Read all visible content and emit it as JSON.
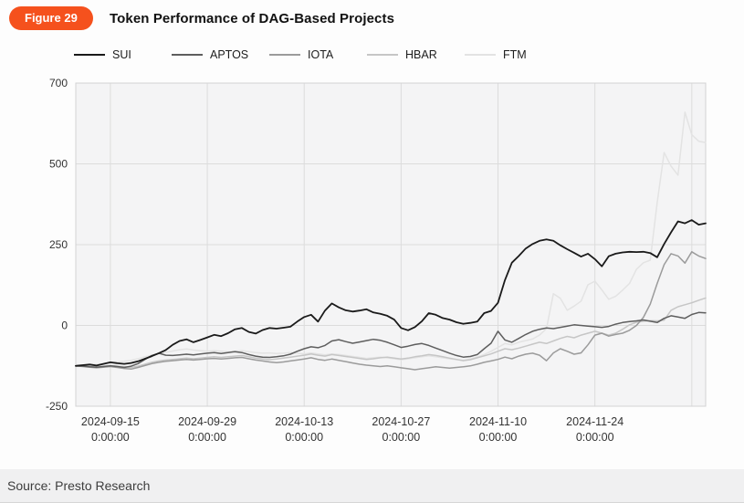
{
  "figure_badge": "Figure 29",
  "title": "Token Performance of DAG-Based Projects",
  "source": "Source: Presto Research",
  "colors": {
    "badge": "#f5511d",
    "plot_bg": "#f4f4f5",
    "grid": "#dcdcdc",
    "frame": "#d2d2d4",
    "axis_text": "#333333"
  },
  "legend": {
    "items": [
      {
        "label": "SUI",
        "color": "#1a1a1a"
      },
      {
        "label": "APTOS",
        "color": "#5e5e5e"
      },
      {
        "label": "IOTA",
        "color": "#9b9b9b"
      },
      {
        "label": "HBAR",
        "color": "#c6c6c6"
      },
      {
        "label": "FTM",
        "color": "#e3e3e3"
      }
    ]
  },
  "chart_data": {
    "type": "line",
    "title": "Token Performance of DAG-Based Projects",
    "x_unit": "day",
    "x_start": "2024-09-10",
    "x_end": "2024-12-10",
    "x_axis": {
      "ticks": [
        {
          "day": 5,
          "lines": [
            "2024-09-15",
            "0:00:00"
          ]
        },
        {
          "day": 19,
          "lines": [
            "2024-09-29",
            "0:00:00"
          ]
        },
        {
          "day": 33,
          "lines": [
            "2024-10-13",
            "0:00:00"
          ]
        },
        {
          "day": 47,
          "lines": [
            "2024-10-27",
            "0:00:00"
          ]
        },
        {
          "day": 61,
          "lines": [
            "2024-11-10",
            "0:00:00"
          ]
        },
        {
          "day": 75,
          "lines": [
            "2024-11-24",
            "0:00:00"
          ]
        },
        {
          "day": 89,
          "lines": [
            "",
            ""
          ]
        }
      ]
    },
    "y_axis": {
      "ticks": [
        -250,
        0,
        250,
        500,
        700
      ],
      "edge_tick": 700,
      "grid": true
    },
    "legend_position": "top",
    "series": [
      {
        "name": "SUI",
        "color": "#1a1a1a",
        "width": 1.8,
        "values": [
          -125,
          -123,
          -121,
          -124,
          -119,
          -114,
          -117,
          -119,
          -116,
          -111,
          -103,
          -95,
          -86,
          -76,
          -60,
          -48,
          -43,
          -52,
          -45,
          -37,
          -29,
          -33,
          -24,
          -12,
          -8,
          -20,
          -25,
          -14,
          -8,
          -10,
          -7,
          -4,
          12,
          26,
          33,
          12,
          46,
          68,
          56,
          47,
          43,
          46,
          50,
          40,
          36,
          30,
          18,
          -8,
          -15,
          -5,
          13,
          38,
          33,
          23,
          18,
          10,
          5,
          8,
          12,
          38,
          45,
          70,
          140,
          194,
          215,
          238,
          252,
          262,
          266,
          262,
          248,
          236,
          225,
          213,
          222,
          205,
          183,
          214,
          222,
          226,
          228,
          227,
          228,
          224,
          211,
          252,
          288,
          322,
          316,
          326,
          312,
          316
        ]
      },
      {
        "name": "APTOS",
        "color": "#5e5e5e",
        "width": 1.5,
        "values": [
          -125,
          -126,
          -128,
          -129,
          -127,
          -125,
          -127,
          -130,
          -126,
          -118,
          -105,
          -93,
          -86,
          -92,
          -93,
          -91,
          -89,
          -91,
          -88,
          -86,
          -84,
          -87,
          -84,
          -81,
          -84,
          -90,
          -95,
          -98,
          -99,
          -97,
          -94,
          -89,
          -80,
          -72,
          -66,
          -69,
          -62,
          -48,
          -44,
          -50,
          -55,
          -51,
          -47,
          -43,
          -46,
          -52,
          -60,
          -68,
          -64,
          -59,
          -56,
          -62,
          -70,
          -78,
          -86,
          -93,
          -98,
          -96,
          -90,
          -72,
          -55,
          -18,
          -45,
          -52,
          -40,
          -28,
          -18,
          -12,
          -8,
          -10,
          -6,
          -2,
          2,
          0,
          -2,
          -4,
          -6,
          -3,
          4,
          9,
          12,
          14,
          17,
          13,
          9,
          22,
          30,
          26,
          22,
          34,
          40,
          39
        ]
      },
      {
        "name": "IOTA",
        "color": "#9b9b9b",
        "width": 1.5,
        "values": [
          -125,
          -127,
          -129,
          -131,
          -129,
          -127,
          -130,
          -133,
          -135,
          -130,
          -124,
          -118,
          -114,
          -111,
          -109,
          -107,
          -105,
          -107,
          -105,
          -103,
          -102,
          -104,
          -102,
          -100,
          -99,
          -103,
          -107,
          -110,
          -113,
          -115,
          -113,
          -110,
          -107,
          -104,
          -100,
          -105,
          -108,
          -104,
          -108,
          -112,
          -116,
          -120,
          -123,
          -125,
          -127,
          -125,
          -128,
          -131,
          -134,
          -137,
          -134,
          -131,
          -128,
          -130,
          -132,
          -130,
          -128,
          -125,
          -120,
          -114,
          -110,
          -105,
          -98,
          -103,
          -95,
          -89,
          -86,
          -92,
          -109,
          -85,
          -72,
          -80,
          -89,
          -85,
          -60,
          -30,
          -24,
          -33,
          -28,
          -24,
          -15,
          0,
          25,
          66,
          130,
          188,
          222,
          215,
          193,
          228,
          215,
          207
        ]
      },
      {
        "name": "HBAR",
        "color": "#c6c6c6",
        "width": 1.5,
        "values": [
          -125,
          -126,
          -127,
          -128,
          -126,
          -124,
          -126,
          -128,
          -130,
          -126,
          -120,
          -114,
          -110,
          -107,
          -105,
          -103,
          -101,
          -103,
          -101,
          -99,
          -97,
          -99,
          -97,
          -95,
          -93,
          -97,
          -101,
          -104,
          -106,
          -104,
          -101,
          -98,
          -95,
          -92,
          -88,
          -92,
          -95,
          -90,
          -93,
          -96,
          -99,
          -102,
          -105,
          -103,
          -100,
          -98,
          -101,
          -104,
          -101,
          -97,
          -94,
          -90,
          -93,
          -97,
          -101,
          -105,
          -109,
          -106,
          -100,
          -94,
          -88,
          -80,
          -72,
          -75,
          -70,
          -64,
          -58,
          -52,
          -56,
          -48,
          -40,
          -34,
          -38,
          -30,
          -24,
          -18,
          -24,
          -30,
          -24,
          -12,
          2,
          10,
          13,
          15,
          14,
          16,
          47,
          58,
          64,
          70,
          78,
          85
        ]
      },
      {
        "name": "FTM",
        "color": "#e3e3e3",
        "width": 1.5,
        "values": [
          -123,
          -122,
          -120,
          -121,
          -118,
          -115,
          -113,
          -111,
          -108,
          -103,
          -97,
          -92,
          -87,
          -83,
          -79,
          -75,
          -73,
          -76,
          -78,
          -80,
          -78,
          -80,
          -82,
          -80,
          -78,
          -81,
          -84,
          -86,
          -85,
          -87,
          -86,
          -84,
          -86,
          -88,
          -85,
          -88,
          -91,
          -88,
          -90,
          -93,
          -96,
          -99,
          -102,
          -100,
          -98,
          -100,
          -103,
          -106,
          -103,
          -100,
          -97,
          -94,
          -97,
          -100,
          -103,
          -106,
          -108,
          -104,
          -98,
          -90,
          -80,
          -68,
          -56,
          -60,
          -52,
          -47,
          -42,
          -30,
          -10,
          98,
          84,
          47,
          60,
          75,
          126,
          137,
          110,
          81,
          90,
          109,
          130,
          174,
          194,
          202,
          380,
          535,
          493,
          465,
          660,
          590,
          570,
          566
        ]
      }
    ]
  }
}
